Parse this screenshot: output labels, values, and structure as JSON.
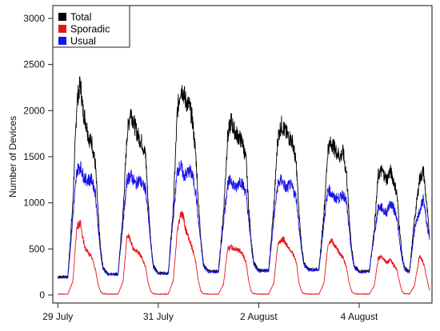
{
  "chart_data": {
    "type": "line",
    "title": "",
    "xlabel": "",
    "ylabel": "Number of Devices",
    "ylim": [
      0,
      3000
    ],
    "yticks": [
      0,
      500,
      1000,
      1500,
      2000,
      2500,
      3000
    ],
    "x_unit": "days",
    "xlim": [
      -0.1,
      7.45
    ],
    "xticks": [
      {
        "x": 0,
        "label": "29 July"
      },
      {
        "x": 2,
        "label": "31 July"
      },
      {
        "x": 4,
        "label": "2 August"
      },
      {
        "x": 6,
        "label": "4 August"
      }
    ],
    "grid": false,
    "legend_position": "top-left",
    "series": [
      {
        "name": "Total",
        "color": "#000000",
        "x": [
          0,
          0.2,
          0.3,
          0.38,
          0.45,
          0.5,
          0.55,
          0.62,
          0.68,
          0.75,
          0.8,
          0.85,
          0.9,
          1.0,
          1.2,
          1.3,
          1.38,
          1.45,
          1.5,
          1.55,
          1.62,
          1.68,
          1.75,
          1.8,
          1.85,
          1.9,
          2.0,
          2.2,
          2.3,
          2.38,
          2.45,
          2.5,
          2.55,
          2.62,
          2.68,
          2.75,
          2.8,
          2.85,
          2.9,
          3.0,
          3.2,
          3.3,
          3.38,
          3.45,
          3.5,
          3.55,
          3.62,
          3.68,
          3.75,
          3.8,
          3.85,
          3.9,
          4.0,
          4.2,
          4.3,
          4.38,
          4.45,
          4.5,
          4.55,
          4.62,
          4.68,
          4.75,
          4.8,
          4.85,
          4.9,
          5.0,
          5.2,
          5.3,
          5.38,
          5.45,
          5.5,
          5.55,
          5.62,
          5.68,
          5.75,
          5.8,
          5.85,
          5.9,
          6.0,
          6.2,
          6.3,
          6.38,
          6.45,
          6.5,
          6.55,
          6.62,
          6.68,
          6.75,
          6.8,
          6.85,
          6.9,
          7.0,
          7.1,
          7.2,
          7.28,
          7.34,
          7.4
        ],
        "values": [
          200,
          200,
          1000,
          2100,
          2300,
          2000,
          1900,
          1700,
          1650,
          1400,
          900,
          500,
          300,
          230,
          230,
          900,
          1750,
          2000,
          1900,
          1800,
          1700,
          1650,
          1500,
          1000,
          600,
          320,
          240,
          240,
          950,
          2000,
          2250,
          2200,
          2100,
          2050,
          1900,
          1500,
          1000,
          600,
          330,
          260,
          260,
          900,
          1700,
          1900,
          1800,
          1750,
          1700,
          1650,
          1450,
          950,
          600,
          350,
          270,
          270,
          950,
          1700,
          1850,
          1800,
          1750,
          1700,
          1650,
          1400,
          900,
          550,
          340,
          280,
          280,
          900,
          1600,
          1650,
          1600,
          1550,
          1500,
          1550,
          1300,
          850,
          500,
          320,
          260,
          260,
          700,
          1300,
          1350,
          1300,
          1250,
          1350,
          1250,
          1100,
          750,
          450,
          300,
          250,
          800,
          1250,
          1350,
          1000,
          650
        ]
      },
      {
        "name": "Sporadic",
        "color": "#e8141b",
        "x": [
          0,
          0.2,
          0.3,
          0.38,
          0.45,
          0.5,
          0.55,
          0.62,
          0.68,
          0.75,
          0.8,
          0.85,
          0.9,
          1.0,
          1.2,
          1.3,
          1.38,
          1.45,
          1.5,
          1.55,
          1.62,
          1.68,
          1.75,
          1.8,
          1.85,
          1.9,
          2.0,
          2.2,
          2.3,
          2.38,
          2.45,
          2.5,
          2.55,
          2.62,
          2.68,
          2.75,
          2.8,
          2.85,
          2.9,
          3.0,
          3.2,
          3.3,
          3.38,
          3.45,
          3.5,
          3.55,
          3.62,
          3.68,
          3.75,
          3.8,
          3.85,
          3.9,
          4.0,
          4.2,
          4.3,
          4.38,
          4.45,
          4.5,
          4.55,
          4.62,
          4.68,
          4.75,
          4.8,
          4.85,
          4.9,
          5.0,
          5.2,
          5.3,
          5.38,
          5.45,
          5.5,
          5.55,
          5.62,
          5.68,
          5.75,
          5.8,
          5.85,
          5.9,
          6.0,
          6.2,
          6.3,
          6.38,
          6.45,
          6.5,
          6.55,
          6.62,
          6.68,
          6.75,
          6.8,
          6.85,
          6.9,
          7.0,
          7.1,
          7.2,
          7.28,
          7.34,
          7.4
        ],
        "values": [
          10,
          10,
          150,
          750,
          780,
          600,
          500,
          450,
          400,
          280,
          120,
          40,
          15,
          10,
          10,
          150,
          650,
          600,
          500,
          480,
          450,
          400,
          300,
          130,
          40,
          15,
          10,
          10,
          160,
          700,
          900,
          850,
          700,
          600,
          500,
          350,
          150,
          40,
          15,
          10,
          10,
          120,
          500,
          520,
          500,
          500,
          480,
          450,
          350,
          150,
          40,
          15,
          10,
          10,
          130,
          550,
          600,
          600,
          550,
          500,
          450,
          350,
          140,
          40,
          15,
          10,
          10,
          130,
          550,
          600,
          550,
          500,
          450,
          400,
          300,
          130,
          40,
          15,
          10,
          10,
          100,
          400,
          420,
          380,
          350,
          380,
          330,
          280,
          150,
          40,
          15,
          10,
          100,
          420,
          350,
          200,
          50
        ]
      },
      {
        "name": "Usual",
        "color": "#1a14ea",
        "x": [
          0,
          0.2,
          0.3,
          0.38,
          0.45,
          0.5,
          0.55,
          0.62,
          0.68,
          0.75,
          0.8,
          0.85,
          0.9,
          1.0,
          1.2,
          1.3,
          1.38,
          1.45,
          1.5,
          1.55,
          1.62,
          1.68,
          1.75,
          1.8,
          1.85,
          1.9,
          2.0,
          2.2,
          2.3,
          2.38,
          2.45,
          2.5,
          2.55,
          2.62,
          2.68,
          2.75,
          2.8,
          2.85,
          2.9,
          3.0,
          3.2,
          3.3,
          3.38,
          3.45,
          3.5,
          3.55,
          3.62,
          3.68,
          3.75,
          3.8,
          3.85,
          3.9,
          4.0,
          4.2,
          4.3,
          4.38,
          4.45,
          4.5,
          4.55,
          4.62,
          4.68,
          4.75,
          4.8,
          4.85,
          4.9,
          5.0,
          5.2,
          5.3,
          5.38,
          5.45,
          5.5,
          5.55,
          5.62,
          5.68,
          5.75,
          5.8,
          5.85,
          5.9,
          6.0,
          6.2,
          6.3,
          6.38,
          6.45,
          6.5,
          6.55,
          6.62,
          6.68,
          6.75,
          6.8,
          6.85,
          6.9,
          7.0,
          7.1,
          7.2,
          7.28,
          7.34,
          7.4
        ],
        "values": [
          190,
          190,
          850,
          1350,
          1400,
          1300,
          1250,
          1250,
          1250,
          1100,
          750,
          450,
          280,
          220,
          220,
          800,
          1250,
          1300,
          1250,
          1200,
          1250,
          1200,
          1150,
          850,
          550,
          300,
          230,
          230,
          850,
          1350,
          1400,
          1300,
          1300,
          1350,
          1300,
          1100,
          800,
          550,
          310,
          250,
          250,
          800,
          1200,
          1250,
          1200,
          1150,
          1250,
          1200,
          1100,
          800,
          550,
          330,
          260,
          260,
          820,
          1200,
          1250,
          1200,
          1150,
          1200,
          1150,
          1050,
          750,
          500,
          320,
          270,
          270,
          800,
          1150,
          1100,
          1050,
          1050,
          1050,
          1100,
          1000,
          700,
          450,
          300,
          250,
          250,
          650,
          950,
          950,
          900,
          900,
          1000,
          950,
          850,
          600,
          400,
          280,
          240,
          700,
          900,
          1050,
          800,
          600
        ]
      }
    ]
  }
}
